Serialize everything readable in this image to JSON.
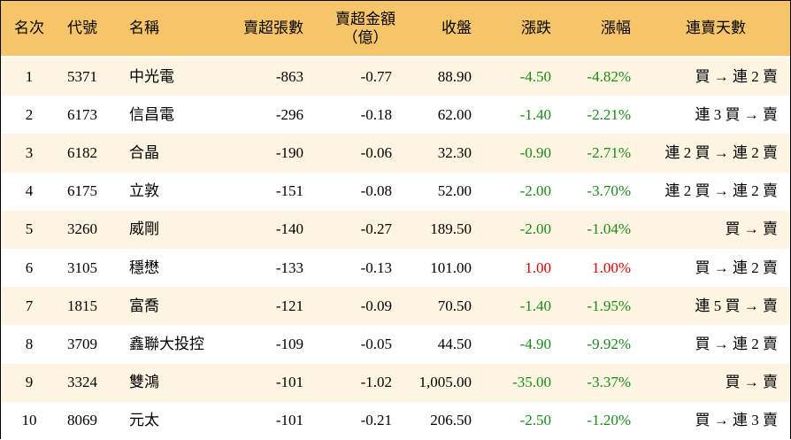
{
  "table": {
    "header": [
      "名次",
      "代號",
      "名稱",
      "賣超張數",
      [
        "賣超金額",
        "（億）"
      ],
      "收盤",
      "漲跌",
      "漲幅",
      "連賣天數"
    ],
    "rows": [
      [
        "1",
        "5371",
        "中光電",
        "-863",
        "-0.77",
        "88.90",
        "-4.50",
        "-4.82%",
        "買 → 連 2 賣"
      ],
      [
        "2",
        "6173",
        "信昌電",
        "-296",
        "-0.18",
        "62.00",
        "-1.40",
        "-2.21%",
        "連 3 買 → 賣"
      ],
      [
        "3",
        "6182",
        "合晶",
        "-190",
        "-0.06",
        "32.30",
        "-0.90",
        "-2.71%",
        "連 2 買 → 連 2 賣"
      ],
      [
        "4",
        "6175",
        "立敦",
        "-151",
        "-0.08",
        "52.00",
        "-2.00",
        "-3.70%",
        "連 2 買 → 連 2 賣"
      ],
      [
        "5",
        "3260",
        "威剛",
        "-140",
        "-0.27",
        "189.50",
        "-2.00",
        "-1.04%",
        "買 → 賣"
      ],
      [
        "6",
        "3105",
        "穩懋",
        "-133",
        "-0.13",
        "101.00",
        "1.00",
        "1.00%",
        "買 → 連 2 賣"
      ],
      [
        "7",
        "1815",
        "富喬",
        "-121",
        "-0.09",
        "70.50",
        "-1.40",
        "-1.95%",
        "連 5 買 → 賣"
      ],
      [
        "8",
        "3709",
        "鑫聯大投控",
        "-109",
        "-0.05",
        "44.50",
        "-4.90",
        "-9.92%",
        "買 → 連 2 賣"
      ],
      [
        "9",
        "3324",
        "雙鴻",
        "-101",
        "-1.02",
        "1,005.00",
        "-35.00",
        "-3.37%",
        "買 → 賣"
      ],
      [
        "10",
        "8069",
        "元太",
        "-101",
        "-0.21",
        "206.50",
        "-2.50",
        "-1.20%",
        "買 → 連 3 賣"
      ]
    ]
  }
}
